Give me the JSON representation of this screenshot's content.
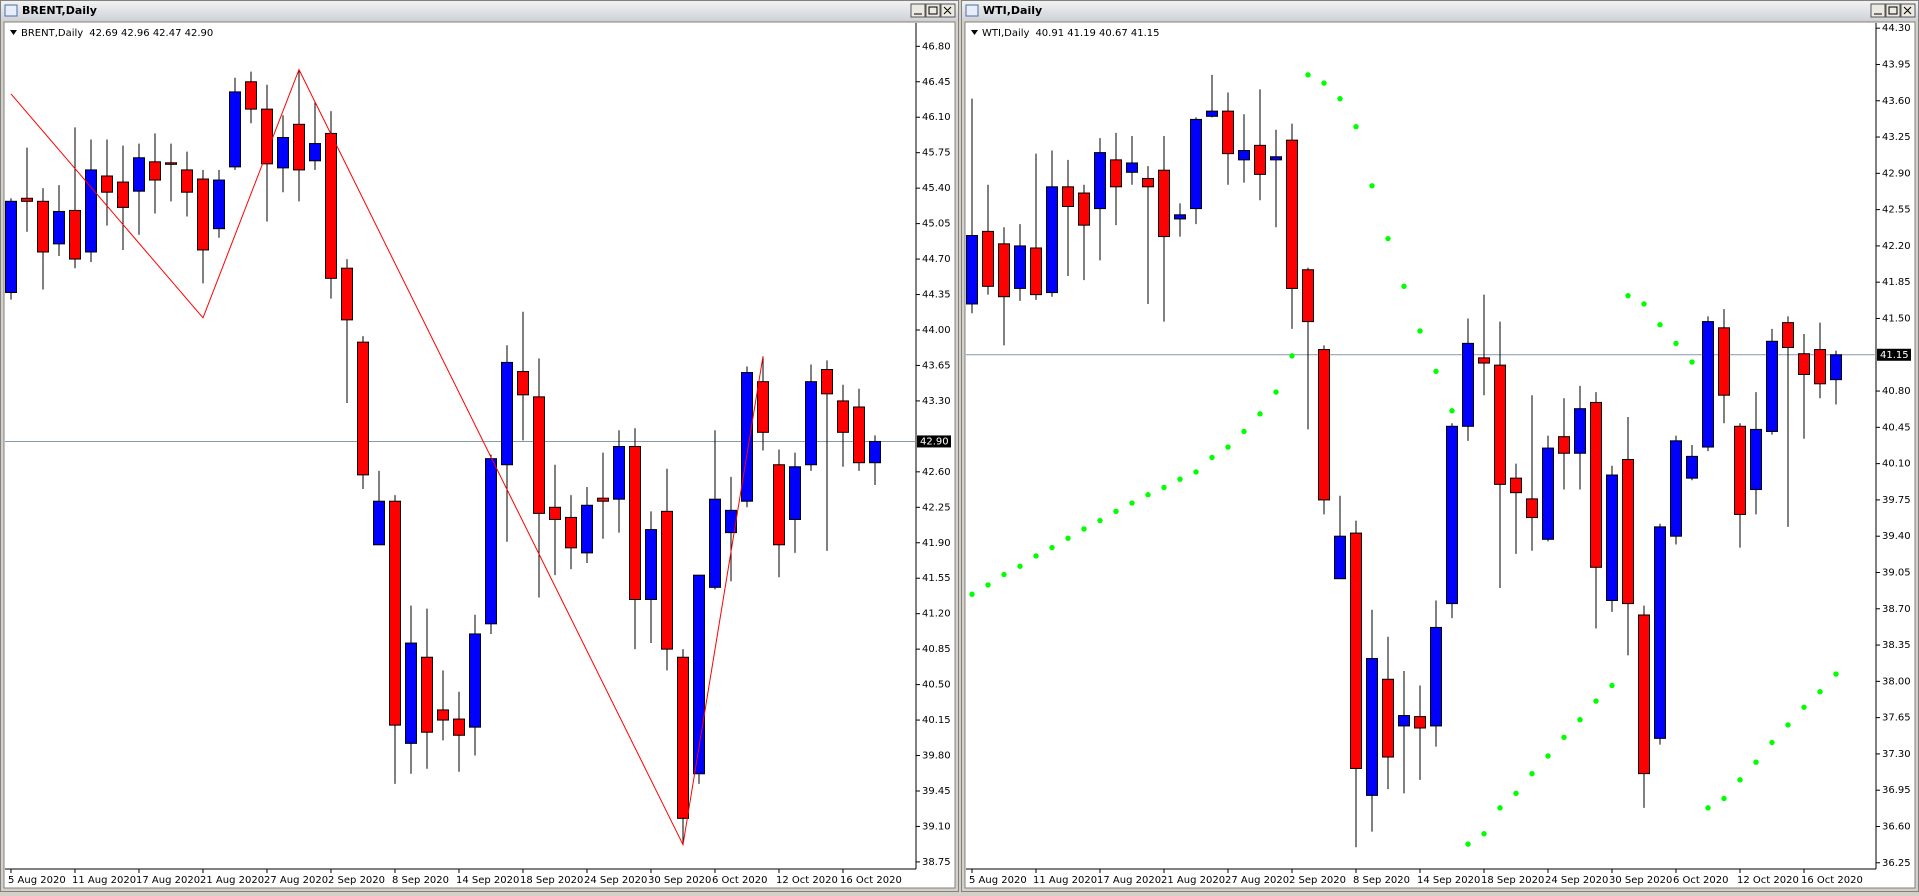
{
  "chart_data": [
    {
      "type": "candlestick",
      "title": "BRENT,Daily",
      "legend_label": "BRENT,Daily",
      "header_values": "42.69 42.96 42.47 42.90",
      "categories": [
        "5 Aug 2020",
        null,
        null,
        null,
        "11 Aug 2020",
        null,
        null,
        null,
        "17 Aug 2020",
        null,
        null,
        null,
        "21 Aug 2020",
        null,
        null,
        null,
        "27 Aug 2020",
        null,
        null,
        null,
        "2 Sep 2020",
        null,
        null,
        null,
        "8 Sep 2020",
        null,
        null,
        null,
        "14 Sep 2020",
        null,
        null,
        null,
        "18 Sep 2020",
        null,
        null,
        null,
        "24 Sep 2020",
        null,
        null,
        null,
        "30 Sep 2020",
        null,
        null,
        null,
        "6 Oct 2020",
        null,
        null,
        null,
        "12 Oct 2020",
        null,
        null,
        null,
        "16 Oct 2020",
        null,
        null
      ],
      "open": [
        44.37,
        45.3,
        45.27,
        44.85,
        45.18,
        44.77,
        45.52,
        45.46,
        45.37,
        45.66,
        45.65,
        45.58,
        45.49,
        45.0,
        45.61,
        46.45,
        46.18,
        45.6,
        46.03,
        45.67,
        45.94,
        44.61,
        43.88,
        41.88,
        42.31,
        39.92,
        40.77,
        40.25,
        40.16,
        40.08,
        41.1,
        42.67,
        43.59,
        43.34,
        42.25,
        42.15,
        41.8,
        42.34,
        42.33,
        42.85,
        41.34,
        42.21,
        40.77,
        39.62,
        41.46,
        42.0,
        42.31,
        43.49,
        42.67,
        42.13,
        42.67,
        43.61,
        43.3,
        43.24,
        42.69
      ],
      "high": [
        45.3,
        45.8,
        45.4,
        45.43,
        46.0,
        45.88,
        45.88,
        45.82,
        45.84,
        45.94,
        45.84,
        45.76,
        45.58,
        45.58,
        46.49,
        46.55,
        46.42,
        46.12,
        46.57,
        46.25,
        46.16,
        44.7,
        43.94,
        42.61,
        42.37,
        41.28,
        41.25,
        40.64,
        40.43,
        41.19,
        42.77,
        43.85,
        44.18,
        43.72,
        42.67,
        42.37,
        42.45,
        42.79,
        43.01,
        43.03,
        42.21,
        42.63,
        40.85,
        41.58,
        43.01,
        42.55,
        43.64,
        43.74,
        42.82,
        42.79,
        43.66,
        43.7,
        43.46,
        43.42,
        42.96
      ],
      "low": [
        44.3,
        44.97,
        44.4,
        44.73,
        44.61,
        44.67,
        45.03,
        44.79,
        44.94,
        45.15,
        45.27,
        45.12,
        44.46,
        44.91,
        45.58,
        46.04,
        45.07,
        45.36,
        45.27,
        45.58,
        44.31,
        43.28,
        42.43,
        41.88,
        39.52,
        39.62,
        39.67,
        39.95,
        39.64,
        39.8,
        41.0,
        41.91,
        42.91,
        41.36,
        41.58,
        41.64,
        41.7,
        41.94,
        42.0,
        40.85,
        40.91,
        40.64,
        38.92,
        39.52,
        41.44,
        41.52,
        42.25,
        42.81,
        41.56,
        41.8,
        42.61,
        41.82,
        42.65,
        42.61,
        42.47
      ],
      "close": [
        45.27,
        45.27,
        44.77,
        45.17,
        44.7,
        45.58,
        45.36,
        45.21,
        45.7,
        45.48,
        45.64,
        45.36,
        44.79,
        45.48,
        46.35,
        46.18,
        45.64,
        45.9,
        45.58,
        45.84,
        44.51,
        44.1,
        42.57,
        42.31,
        40.1,
        40.91,
        40.03,
        40.15,
        40.0,
        41.0,
        42.73,
        43.68,
        43.36,
        42.19,
        42.13,
        41.85,
        42.27,
        42.31,
        42.85,
        41.34,
        42.03,
        40.85,
        39.18,
        41.58,
        42.33,
        42.22,
        43.58,
        42.99,
        41.88,
        42.65,
        43.49,
        43.37,
        42.99,
        42.69,
        42.9
      ],
      "up_color": "#0000ff",
      "down_color": "#ff0000",
      "zigzag": {
        "color": "#ff0000",
        "x": [
          0,
          12,
          18,
          42,
          47
        ],
        "values": [
          46.33,
          44.12,
          46.57,
          38.92,
          43.74
        ]
      },
      "price_line": {
        "value": 42.9,
        "label": "42.90"
      },
      "ylim": [
        38.68,
        47.03
      ],
      "yticks": [
        {
          "value": 46.8,
          "label": "46.80"
        },
        46.45,
        {
          "value": 46.1,
          "label": "46.10"
        },
        45.75,
        {
          "value": 45.4,
          "label": "45.40"
        },
        45.05,
        {
          "value": 44.7,
          "label": "44.70"
        },
        44.35,
        {
          "value": 44,
          "label": "44.00"
        },
        43.65,
        {
          "value": 43.3,
          "label": "43.30"
        },
        {
          "value": 42.6,
          "label": "42.60"
        },
        42.25,
        {
          "value": 41.9,
          "label": "41.90"
        },
        41.55,
        {
          "value": 41.2,
          "label": "41.20"
        },
        40.85,
        {
          "value": 40.5,
          "label": "40.50"
        },
        40.15,
        {
          "value": 39.8,
          "label": "39.80"
        },
        39.45,
        {
          "value": 39.1,
          "label": "39.10"
        },
        38.75
      ]
    },
    {
      "type": "candlestick",
      "title": "WTI,Daily",
      "legend_label": "WTI,Daily",
      "header_values": "40.91 41.19 40.67 41.15",
      "categories": [
        "5 Aug 2020",
        null,
        null,
        null,
        "11 Aug 2020",
        null,
        null,
        null,
        "17 Aug 2020",
        null,
        null,
        null,
        "21 Aug 2020",
        null,
        null,
        null,
        "27 Aug 2020",
        null,
        null,
        null,
        "2 Sep 2020",
        null,
        null,
        null,
        "8 Sep 2020",
        null,
        null,
        null,
        "14 Sep 2020",
        null,
        null,
        null,
        "18 Sep 2020",
        null,
        null,
        null,
        "24 Sep 2020",
        null,
        null,
        null,
        "30 Sep 2020",
        null,
        null,
        null,
        "6 Oct 2020",
        null,
        null,
        null,
        "12 Oct 2020",
        null,
        null,
        null,
        "16 Oct 2020",
        null,
        null
      ],
      "open": [
        41.64,
        42.34,
        42.22,
        41.79,
        42.18,
        41.75,
        42.77,
        42.71,
        42.56,
        43.03,
        42.91,
        42.85,
        42.93,
        42.46,
        42.56,
        43.45,
        43.5,
        43.03,
        43.17,
        43.03,
        43.22,
        41.97,
        41.2,
        38.99,
        39.43,
        36.9,
        38.02,
        37.57,
        37.66,
        37.57,
        38.75,
        40.46,
        41.12,
        41.05,
        39.96,
        39.76,
        39.37,
        40.36,
        40.2,
        40.69,
        38.78,
        40.14,
        38.64,
        37.45,
        39.4,
        39.96,
        40.26,
        41.41,
        40.46,
        39.85,
        40.41,
        41.46,
        41.16,
        41.2,
        40.91
      ],
      "high": [
        43.62,
        42.79,
        42.38,
        42.41,
        43.09,
        43.12,
        43.03,
        42.79,
        43.24,
        43.29,
        43.26,
        42.97,
        43.26,
        42.61,
        43.44,
        43.85,
        43.68,
        43.47,
        43.71,
        43.32,
        43.38,
        41.99,
        41.24,
        39.79,
        39.55,
        38.69,
        38.43,
        38.1,
        37.96,
        38.78,
        40.49,
        41.5,
        41.73,
        41.47,
        40.1,
        40.76,
        40.37,
        40.73,
        40.85,
        40.79,
        40.08,
        40.55,
        38.73,
        39.52,
        40.37,
        40.28,
        41.52,
        41.59,
        40.49,
        40.79,
        41.4,
        41.52,
        41.35,
        41.46,
        41.19
      ],
      "low": [
        41.55,
        41.73,
        41.24,
        41.67,
        41.68,
        41.71,
        41.91,
        41.87,
        42.06,
        42.4,
        42.79,
        41.64,
        41.47,
        42.29,
        42.41,
        43.44,
        42.79,
        42.81,
        42.64,
        42.38,
        41.4,
        40.43,
        39.61,
        38.99,
        36.4,
        36.55,
        36.96,
        36.92,
        37.05,
        37.37,
        38.61,
        40.32,
        40.76,
        38.9,
        39.23,
        39.26,
        39.35,
        39.85,
        39.85,
        38.51,
        38.67,
        38.25,
        36.78,
        37.39,
        39.32,
        39.94,
        40.22,
        40.49,
        39.29,
        39.61,
        40.38,
        39.49,
        40.34,
        40.73,
        40.67
      ],
      "close": [
        42.3,
        41.81,
        41.71,
        42.2,
        41.73,
        42.77,
        42.58,
        42.4,
        43.1,
        42.77,
        43.0,
        42.77,
        42.29,
        42.5,
        43.42,
        43.5,
        43.09,
        43.12,
        42.89,
        43.06,
        41.79,
        41.47,
        39.75,
        39.4,
        37.16,
        38.22,
        37.27,
        37.67,
        37.55,
        38.52,
        40.46,
        41.26,
        41.07,
        39.9,
        39.82,
        39.58,
        40.25,
        40.2,
        40.63,
        39.1,
        39.99,
        38.75,
        37.11,
        39.49,
        40.32,
        40.17,
        41.47,
        40.76,
        39.61,
        40.43,
        41.28,
        41.22,
        40.96,
        40.87,
        41.15
      ],
      "up_color": "#0000ff",
      "down_color": "#ff0000",
      "psar": {
        "color": "#00ff00",
        "values": [
          38.84,
          38.93,
          39.03,
          39.11,
          39.21,
          39.29,
          39.38,
          39.47,
          39.55,
          39.64,
          39.72,
          39.8,
          39.87,
          39.95,
          40.02,
          40.16,
          40.26,
          40.41,
          40.58,
          40.79,
          41.14,
          43.85,
          43.77,
          43.62,
          43.35,
          42.78,
          42.27,
          41.81,
          41.38,
          40.99,
          40.61,
          36.43,
          36.53,
          36.78,
          36.92,
          37.11,
          37.28,
          37.46,
          37.63,
          37.81,
          37.96,
          41.72,
          41.64,
          41.44,
          41.26,
          41.08,
          36.78,
          36.87,
          37.05,
          37.22,
          37.41,
          37.58,
          37.75,
          37.9,
          38.07
        ]
      },
      "price_line": {
        "value": 41.15,
        "label": "41.15"
      },
      "ylim": [
        36.19,
        44.35
      ],
      "yticks": [
        {
          "value": 44.3,
          "label": "44.30"
        },
        43.95,
        {
          "value": 43.6,
          "label": "43.60"
        },
        43.25,
        {
          "value": 42.9,
          "label": "42.90"
        },
        42.55,
        {
          "value": 42.2,
          "label": "42.20"
        },
        41.85,
        {
          "value": 41.5,
          "label": "41.50"
        },
        {
          "value": 40.8,
          "label": "40.80"
        },
        40.45,
        {
          "value": 40.1,
          "label": "40.10"
        },
        39.75,
        {
          "value": 39.4,
          "label": "39.40"
        },
        39.05,
        {
          "value": 38.7,
          "label": "38.70"
        },
        38.35,
        {
          "value": 38,
          "label": "38.00"
        },
        37.65,
        {
          "value": 37.3,
          "label": "37.30"
        },
        36.95,
        {
          "value": 36.6,
          "label": "36.60"
        },
        36.25
      ]
    }
  ]
}
